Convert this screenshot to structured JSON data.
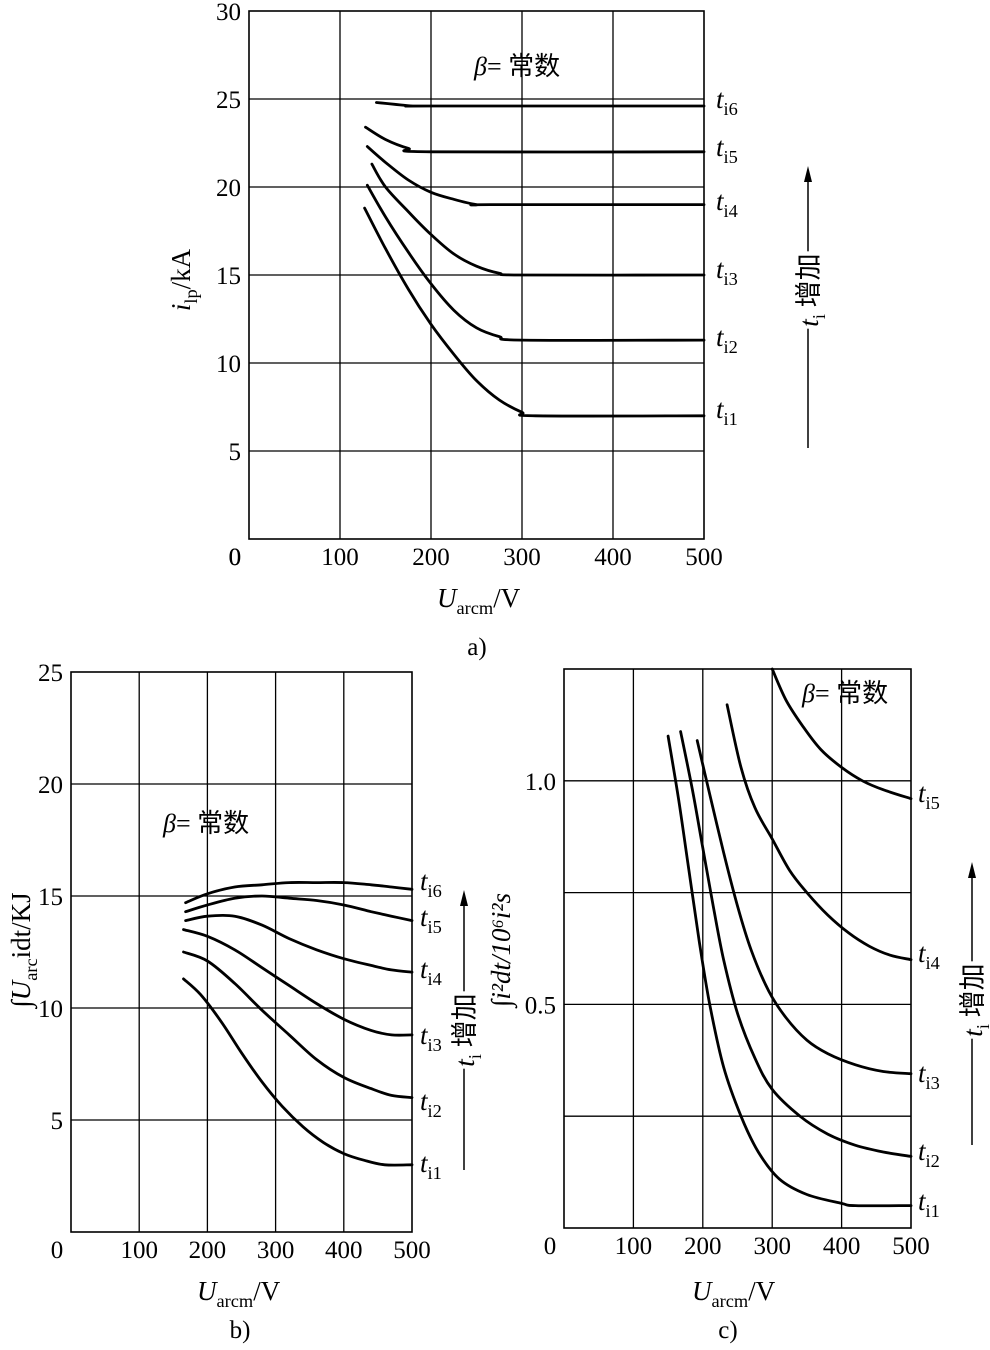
{
  "chart_data": [
    {
      "id": "a",
      "type": "line",
      "caption": "a)",
      "title": "β= 常数",
      "xlabel": {
        "main": "U",
        "sub": "arcm",
        "unit": "/V"
      },
      "ylabel": {
        "main": "i",
        "sub": "lp",
        "unit": "/kA"
      },
      "xlim": [
        0,
        500
      ],
      "ylim": [
        0,
        30
      ],
      "xticks": [
        0,
        100,
        200,
        300,
        400,
        500
      ],
      "yticks": [
        0,
        5,
        10,
        15,
        20,
        25,
        30
      ],
      "grid": true,
      "trend": {
        "text": "增加",
        "var": "t",
        "sub": "i"
      },
      "series": [
        {
          "name": "t",
          "sub": "i1",
          "x": [
            127,
            150,
            175,
            200,
            225,
            250,
            275,
            300,
            315,
            500
          ],
          "y": [
            18.8,
            16.5,
            14.2,
            12.2,
            10.5,
            9.0,
            7.9,
            7.2,
            7.0,
            7.0
          ]
        },
        {
          "name": "t",
          "sub": "i2",
          "x": [
            130,
            150,
            175,
            200,
            225,
            250,
            275,
            300,
            500
          ],
          "y": [
            20.1,
            18.3,
            16.3,
            14.5,
            13.0,
            12.0,
            11.5,
            11.3,
            11.3
          ]
        },
        {
          "name": "t",
          "sub": "i3",
          "x": [
            135,
            150,
            175,
            200,
            225,
            250,
            275,
            300,
            500
          ],
          "y": [
            21.3,
            20.0,
            18.6,
            17.3,
            16.2,
            15.5,
            15.1,
            15.0,
            15.0
          ]
        },
        {
          "name": "t",
          "sub": "i4",
          "x": [
            130,
            150,
            175,
            200,
            225,
            250,
            265,
            500
          ],
          "y": [
            22.3,
            21.4,
            20.4,
            19.7,
            19.3,
            19.0,
            19.0,
            19.0
          ]
        },
        {
          "name": "t",
          "sub": "i5",
          "x": [
            128,
            150,
            175,
            200,
            500
          ],
          "y": [
            23.4,
            22.7,
            22.2,
            22.0,
            22.0
          ]
        },
        {
          "name": "t",
          "sub": "i6",
          "x": [
            140,
            160,
            180,
            200,
            500
          ],
          "y": [
            24.8,
            24.7,
            24.6,
            24.6,
            24.6
          ]
        }
      ]
    },
    {
      "id": "b",
      "type": "line",
      "caption": "b)",
      "title": "β= 常数",
      "xlabel": {
        "main": "U",
        "sub": "arcm",
        "unit": "/V"
      },
      "ylabel": {
        "main": "∫U",
        "sub": "arc",
        "unit": "idt/KJ"
      },
      "xlim": [
        0,
        500
      ],
      "ylim": [
        0,
        25
      ],
      "xticks": [
        0,
        100,
        200,
        300,
        400,
        500
      ],
      "yticks": [
        0,
        5,
        10,
        15,
        20,
        25
      ],
      "grid": true,
      "trend": {
        "text": "增加",
        "var": "t",
        "sub": "i"
      },
      "series": [
        {
          "name": "t",
          "sub": "i1",
          "x": [
            165,
            190,
            220,
            250,
            280,
            310,
            340,
            370,
            400,
            430,
            460,
            500
          ],
          "y": [
            11.3,
            10.6,
            9.4,
            8.0,
            6.7,
            5.6,
            4.7,
            4.0,
            3.5,
            3.2,
            3.0,
            3.0
          ]
        },
        {
          "name": "t",
          "sub": "i2",
          "x": [
            165,
            200,
            240,
            280,
            320,
            360,
            400,
            440,
            470,
            500
          ],
          "y": [
            12.5,
            12.1,
            11.1,
            9.9,
            8.8,
            7.7,
            6.9,
            6.4,
            6.1,
            6.0
          ]
        },
        {
          "name": "t",
          "sub": "i3",
          "x": [
            165,
            200,
            240,
            280,
            320,
            360,
            400,
            440,
            470,
            500
          ],
          "y": [
            13.5,
            13.2,
            12.6,
            11.8,
            11.0,
            10.2,
            9.5,
            9.0,
            8.8,
            8.8
          ]
        },
        {
          "name": "t",
          "sub": "i4",
          "x": [
            168,
            200,
            240,
            280,
            320,
            360,
            400,
            440,
            470,
            500
          ],
          "y": [
            13.9,
            14.1,
            14.1,
            13.7,
            13.1,
            12.6,
            12.2,
            11.9,
            11.7,
            11.6
          ]
        },
        {
          "name": "t",
          "sub": "i5",
          "x": [
            168,
            200,
            240,
            280,
            320,
            360,
            400,
            440,
            470,
            500
          ],
          "y": [
            14.3,
            14.6,
            14.9,
            15.0,
            14.9,
            14.8,
            14.6,
            14.3,
            14.1,
            13.9
          ]
        },
        {
          "name": "t",
          "sub": "i6",
          "x": [
            168,
            200,
            240,
            280,
            320,
            360,
            400,
            440,
            470,
            500
          ],
          "y": [
            14.7,
            15.1,
            15.4,
            15.5,
            15.6,
            15.6,
            15.6,
            15.5,
            15.4,
            15.3
          ]
        }
      ]
    },
    {
      "id": "c",
      "type": "line",
      "caption": "c)",
      "title": "β= 常数",
      "xlabel": {
        "main": "U",
        "sub": "arcm",
        "unit": "/V"
      },
      "ylabel": {
        "text": "∫i²dt/10⁶i²s"
      },
      "xlim": [
        0,
        500
      ],
      "ylim": [
        0,
        1.25
      ],
      "xticks": [
        0,
        100,
        200,
        300,
        400,
        500
      ],
      "yticks": [
        0.5,
        1.0
      ],
      "yticklabels": [
        "0.5",
        "1.0"
      ],
      "ygrid": [
        0.25,
        0.5,
        0.75,
        1.0
      ],
      "grid": true,
      "trend": {
        "text": "增加",
        "var": "t",
        "sub": "i"
      },
      "series": [
        {
          "name": "t",
          "sub": "i1",
          "x": [
            150,
            165,
            180,
            195,
            210,
            230,
            255,
            280,
            310,
            350,
            400,
            420,
            500
          ],
          "y": [
            1.1,
            0.96,
            0.8,
            0.64,
            0.5,
            0.36,
            0.25,
            0.17,
            0.11,
            0.075,
            0.055,
            0.05,
            0.05
          ]
        },
        {
          "name": "t",
          "sub": "i2",
          "x": [
            168,
            185,
            200,
            215,
            230,
            250,
            275,
            300,
            340,
            380,
            420,
            460,
            500
          ],
          "y": [
            1.11,
            0.98,
            0.85,
            0.72,
            0.6,
            0.48,
            0.38,
            0.31,
            0.25,
            0.21,
            0.185,
            0.17,
            0.16
          ]
        },
        {
          "name": "t",
          "sub": "i3",
          "x": [
            192,
            210,
            230,
            250,
            270,
            295,
            320,
            350,
            380,
            420,
            460,
            500
          ],
          "y": [
            1.09,
            0.97,
            0.84,
            0.72,
            0.62,
            0.53,
            0.47,
            0.42,
            0.39,
            0.365,
            0.35,
            0.345
          ]
        },
        {
          "name": "t",
          "sub": "i4",
          "x": [
            235,
            255,
            275,
            300,
            325,
            350,
            380,
            410,
            440,
            470,
            500
          ],
          "y": [
            1.17,
            1.03,
            0.94,
            0.87,
            0.8,
            0.75,
            0.7,
            0.66,
            0.63,
            0.61,
            0.6
          ]
        },
        {
          "name": "t",
          "sub": "i5",
          "x": [
            300,
            320,
            345,
            370,
            400,
            430,
            460,
            500
          ],
          "y": [
            1.25,
            1.18,
            1.12,
            1.07,
            1.03,
            1.0,
            0.98,
            0.96
          ]
        }
      ]
    }
  ]
}
